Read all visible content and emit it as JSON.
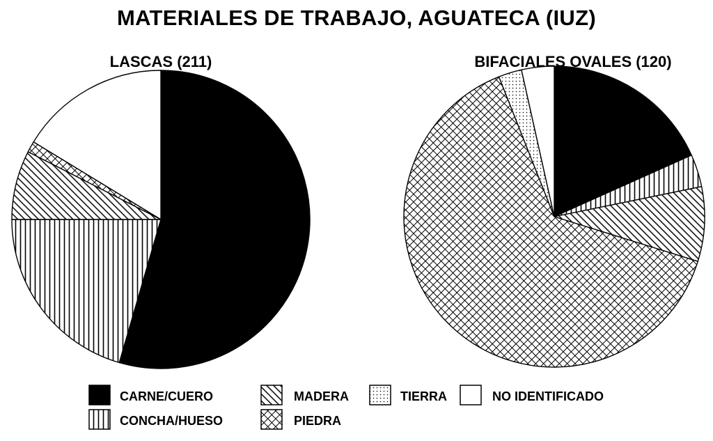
{
  "title": "MATERIALES DE TRABAJO, AGUATECA (IUZ)",
  "legend": [
    {
      "key": "carne",
      "label": "CARNE/CUERO",
      "pattern": "solid"
    },
    {
      "key": "concha",
      "label": "CONCHA/HUESO",
      "pattern": "vertical"
    },
    {
      "key": "madera",
      "label": "MADERA",
      "pattern": "diagonal"
    },
    {
      "key": "piedra",
      "label": "PIEDRA",
      "pattern": "crosshatch"
    },
    {
      "key": "tierra",
      "label": "TIERRA",
      "pattern": "dots"
    },
    {
      "key": "noid",
      "label": "NO IDENTIFICADO",
      "pattern": "white"
    }
  ],
  "chart_data": [
    {
      "type": "pie",
      "title": "LASCAS (211)",
      "start": "12 o'clock",
      "direction": "clockwise",
      "slices": [
        {
          "key": "carne",
          "value": 54.5
        },
        {
          "key": "concha",
          "value": 20.5
        },
        {
          "key": "madera",
          "value": 7.5
        },
        {
          "key": "piedra",
          "value": 1.2
        },
        {
          "key": "noid",
          "value": 16.3
        }
      ]
    },
    {
      "type": "pie",
      "title": "BIFACIALES OVALES (120)",
      "start": "12 o'clock",
      "direction": "clockwise",
      "slices": [
        {
          "key": "carne",
          "value": 18.3
        },
        {
          "key": "concha",
          "value": 3.5
        },
        {
          "key": "madera",
          "value": 8.0
        },
        {
          "key": "piedra",
          "value": 64.2
        },
        {
          "key": "tierra",
          "value": 2.5
        },
        {
          "key": "noid",
          "value": 3.5
        }
      ]
    }
  ]
}
